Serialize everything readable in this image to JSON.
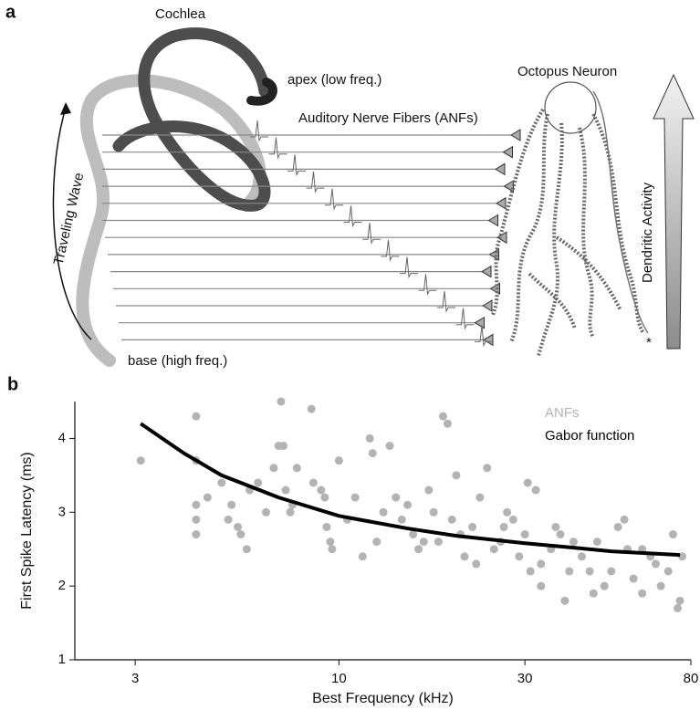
{
  "panel_a": {
    "label": "a",
    "cochlea": "Cochlea",
    "apex": "apex (low freq.)",
    "base": "base (high freq.)",
    "traveling_wave": "Traveling Wave",
    "anfs": "Auditory Nerve Fibers (ANFs)",
    "neuron": "Octopus Neuron",
    "dendritic_activity": "Dendritic Activity",
    "marker": "*"
  },
  "chart_data": {
    "type": "scatter",
    "label": "b",
    "xlabel": "Best Frequency (kHz)",
    "ylabel": "First Spike Latency (ms)",
    "xscale": "log",
    "xlim": [
      2.1,
      80
    ],
    "ylim": [
      1,
      4.5
    ],
    "xticks": [
      3,
      10,
      30,
      80
    ],
    "yticks": [
      1,
      2,
      3,
      4
    ],
    "legend": "top-right",
    "series": [
      {
        "name": "ANFs",
        "type": "scatter",
        "color": "#b3b3b3",
        "x": [
          3.1,
          4.3,
          4.3,
          4.3,
          4.3,
          4.3,
          4.6,
          5,
          5.2,
          5.3,
          5.5,
          5.6,
          5.8,
          5.9,
          6.2,
          6.5,
          6.8,
          7,
          7.1,
          7.2,
          7.3,
          7.5,
          7.6,
          7.8,
          8.5,
          8.6,
          9,
          9.2,
          9.3,
          9.5,
          9.6,
          10,
          10.5,
          11,
          11.5,
          12,
          12.2,
          12.5,
          13,
          13.5,
          14,
          14.5,
          15,
          15.5,
          16,
          16.5,
          17,
          17.5,
          18,
          18.5,
          19,
          19.5,
          20,
          20.5,
          21,
          22,
          22.5,
          23,
          24,
          25,
          26,
          26.5,
          27,
          28,
          29,
          30,
          30.5,
          31,
          32,
          33,
          33,
          35,
          36,
          37,
          38,
          39,
          40,
          42,
          44,
          45,
          46,
          48,
          50,
          52,
          54,
          55,
          57,
          60,
          60,
          63,
          65,
          67,
          70,
          72,
          74,
          75,
          76
        ],
        "values": [
          3.7,
          4.3,
          3.7,
          3.1,
          2.9,
          2.7,
          3.2,
          3.4,
          2.9,
          3.1,
          2.8,
          2.7,
          2.5,
          3.3,
          3.4,
          3,
          3.6,
          3.9,
          4.5,
          3.9,
          3.3,
          3,
          3.1,
          3.6,
          4.4,
          3.4,
          3.3,
          3.2,
          2.8,
          2.6,
          2.5,
          3.7,
          2.9,
          3.2,
          2.4,
          4,
          3.8,
          2.6,
          3,
          3.9,
          3.2,
          2.9,
          3.1,
          2.7,
          2.5,
          2.6,
          3.3,
          3,
          2.6,
          4.3,
          4.2,
          2.9,
          3.5,
          2.7,
          2.4,
          2.8,
          2.3,
          3.2,
          3.6,
          2.5,
          2.6,
          2.8,
          3,
          2.9,
          2.4,
          2.7,
          3.4,
          2.2,
          3.3,
          2,
          2.3,
          2.5,
          2.8,
          2.7,
          1.8,
          2.2,
          2.6,
          2.4,
          2.2,
          1.9,
          2.6,
          2,
          2.2,
          2.8,
          2.9,
          2.5,
          2.1,
          1.9,
          2.5,
          2.4,
          2.3,
          2,
          2.2,
          2.7,
          1.7,
          1.8,
          2.4
        ]
      },
      {
        "name": "Gabor function",
        "type": "line",
        "color": "#000000",
        "x": [
          3.1,
          4,
          5,
          7,
          10,
          15,
          20,
          30,
          40,
          50,
          75
        ],
        "values": [
          4.2,
          3.8,
          3.5,
          3.2,
          2.95,
          2.78,
          2.68,
          2.58,
          2.52,
          2.47,
          2.42
        ]
      }
    ]
  }
}
